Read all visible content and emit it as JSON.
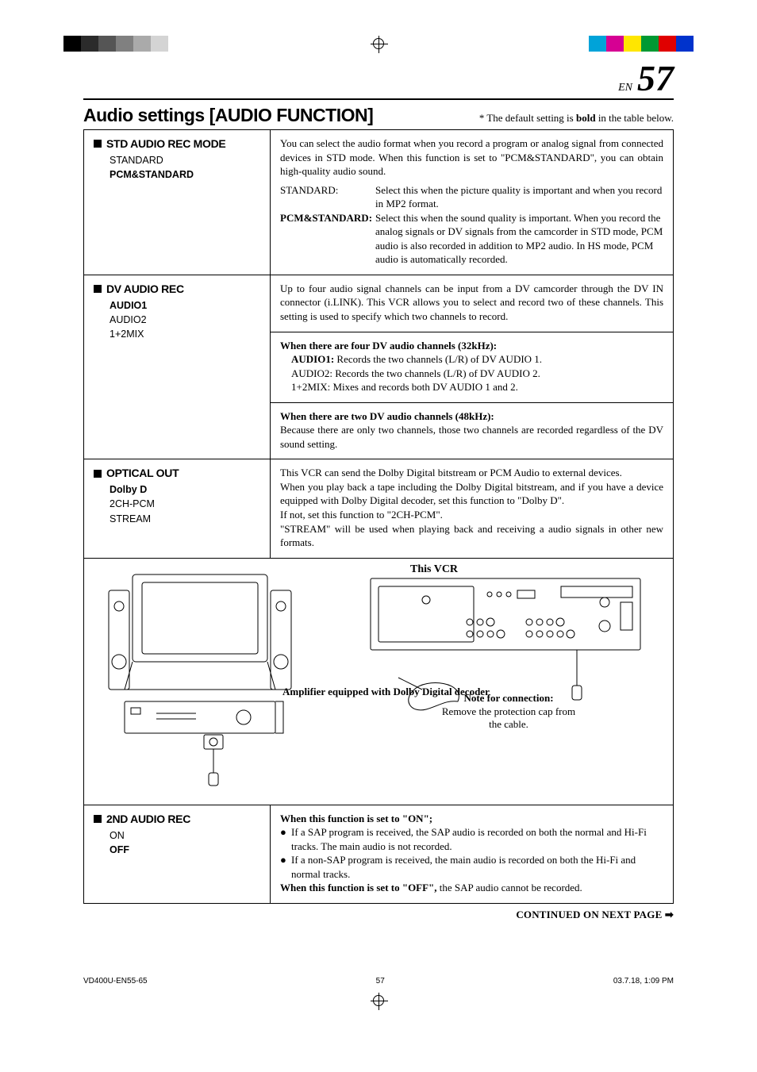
{
  "page": {
    "lang_prefix": "EN",
    "number": "57",
    "heading": "Audio settings [AUDIO FUNCTION]",
    "default_note_pre": "* The default setting is ",
    "default_note_bold": "bold",
    "default_note_post": " in the table below.",
    "continued": "CONTINUED ON NEXT PAGE ➡"
  },
  "colorbars_left": [
    "#000000",
    "#2b2b2b",
    "#555555",
    "#808080",
    "#aaaaaa",
    "#d4d4d4"
  ],
  "colorbars_right": [
    "#00a3d9",
    "#d60093",
    "#ffe600",
    "#009933",
    "#e00000",
    "#0033cc"
  ],
  "rows": [
    {
      "name": "STD AUDIO REC MODE",
      "options": [
        {
          "label": "STANDARD",
          "bold": false
        },
        {
          "label": "PCM&STANDARD",
          "bold": true
        }
      ],
      "desc_intro": "You can select the audio format when you record a program or analog signal from connected devices in STD mode. When this function is set to \"PCM&STANDARD\", you can obtain high-quality audio sound.",
      "defs": [
        {
          "label": "STANDARD:",
          "bold": false,
          "text": "Select this when the picture quality is important and when you record in MP2 format."
        },
        {
          "label": "PCM&STANDARD:",
          "bold": true,
          "text": "Select this when the sound quality is important. When you record the analog signals or DV signals from the camcorder in STD mode, PCM audio is also recorded in addition to MP2 audio. In HS mode, PCM audio is automatically recorded."
        }
      ]
    },
    {
      "name": "DV AUDIO REC",
      "options": [
        {
          "label": "AUDIO1",
          "bold": true
        },
        {
          "label": "AUDIO2",
          "bold": false
        },
        {
          "label": "1+2MIX",
          "bold": false
        }
      ],
      "desc_intro": "Up to four audio signal channels can be input from a DV camcorder through the DV IN connector (i.LINK). This VCR allows you to select and record two of these channels. This setting is used to specify which two channels to record.",
      "sub1_head": "When there are four DV audio channels (32kHz):",
      "sub1_lines": [
        {
          "label": "AUDIO1:",
          "bold": true,
          "text": "Records the two channels (L/R) of DV AUDIO 1."
        },
        {
          "label": "AUDIO2:",
          "bold": false,
          "text": "Records the two channels (L/R) of DV AUDIO 2."
        },
        {
          "label": "1+2MIX:",
          "bold": false,
          "text": "Mixes and records both DV AUDIO 1 and 2."
        }
      ],
      "sub2_head": "When there are two DV audio channels (48kHz):",
      "sub2_text": "Because there are only two channels, those two channels are recorded regardless of the DV sound setting."
    },
    {
      "name": "OPTICAL OUT",
      "options": [
        {
          "label": "Dolby D",
          "bold": true
        },
        {
          "label": "2CH-PCM",
          "bold": false
        },
        {
          "label": "STREAM",
          "bold": false
        }
      ],
      "desc_lines": [
        "This VCR can send the Dolby Digital bitstream or PCM Audio to external devices.",
        "When you play back a tape including the Dolby Digital bitstream, and if you have a device equipped with Dolby Digital decoder, set this function to \"Dolby D\".",
        "If not, set this function to \"2CH-PCM\".",
        "\"STREAM\" will be used when playing back and receiving a audio signals in other new formats."
      ]
    }
  ],
  "diagram": {
    "vcr_title": "This VCR",
    "amp_label": "Amplifier equipped with Dolby Digital decoder",
    "note_title": "Note for connection:",
    "note_text": "Remove the protection cap from the cable."
  },
  "row4": {
    "name": "2ND AUDIO REC",
    "options": [
      {
        "label": "ON",
        "bold": false
      },
      {
        "label": "OFF",
        "bold": true
      }
    ],
    "on_head": "When this function is set to \"ON\";",
    "on_bullets": [
      "If a SAP program is received, the SAP audio is recorded on both the normal and Hi-Fi tracks. The main audio is not recorded.",
      "If a non-SAP program is received, the main audio is recorded on both the Hi-Fi and normal tracks."
    ],
    "off_head": "When this function is set to \"OFF\",",
    "off_text": " the SAP audio cannot be recorded."
  },
  "footer": {
    "left": "VD400U-EN55-65",
    "mid": "57",
    "right": "03.7.18, 1:09 PM"
  }
}
